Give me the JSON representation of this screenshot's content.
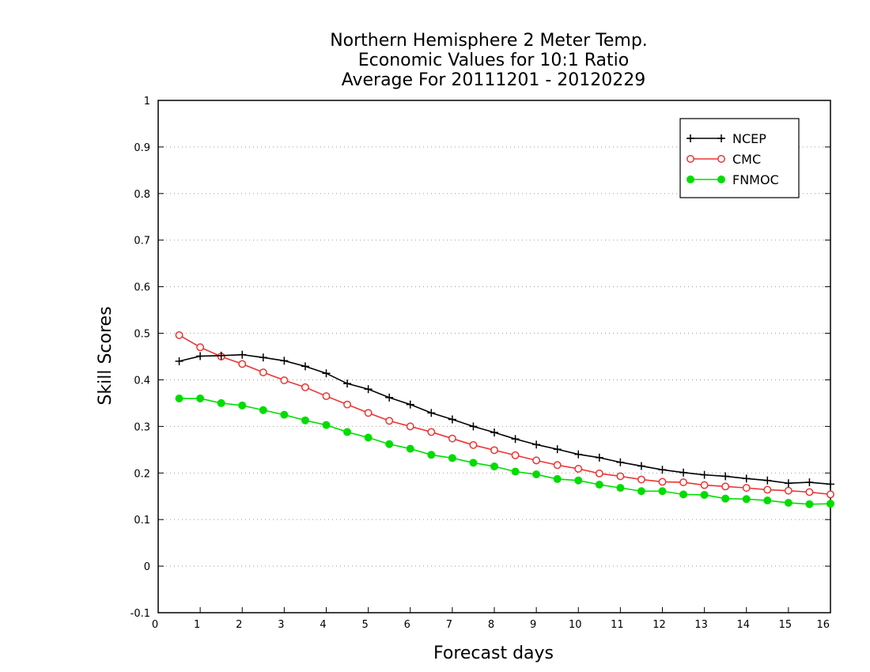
{
  "chart_data": {
    "type": "line",
    "title": [
      "Northern Hemisphere 2 Meter Temp.",
      "Economic Values for 10:1 Ratio",
      "Average For 20111201 - 20120229"
    ],
    "xlabel": "Forecast days",
    "ylabel": "Skill Scores",
    "xlim": [
      0,
      16
    ],
    "ylim": [
      -0.1,
      1
    ],
    "xticks": [
      0,
      1,
      2,
      3,
      4,
      5,
      6,
      7,
      8,
      9,
      10,
      11,
      12,
      13,
      14,
      15,
      16
    ],
    "yticks": [
      -0.1,
      0,
      0.1,
      0.2,
      0.3,
      0.4,
      0.5,
      0.6,
      0.7,
      0.8,
      0.9,
      1
    ],
    "ytick_labels": [
      "-0.1",
      "0",
      "0.1",
      "0.2",
      "0.3",
      "0.4",
      "0.5",
      "0.6",
      "0.7",
      "0.8",
      "0.9",
      "1"
    ],
    "grid": "horizontal dotted",
    "legend_position": "top-right",
    "x": [
      0.5,
      1,
      1.5,
      2,
      2.5,
      3,
      3.5,
      4,
      4.5,
      5,
      5.5,
      6,
      6.5,
      7,
      7.5,
      8,
      8.5,
      9,
      9.5,
      10,
      10.5,
      11,
      11.5,
      12,
      12.5,
      13,
      13.5,
      14,
      14.5,
      15,
      15.5,
      16
    ],
    "series": [
      {
        "name": "NCEP",
        "color": "#000000",
        "marker": "plus",
        "values": [
          0.44,
          0.451,
          0.452,
          0.454,
          0.448,
          0.441,
          0.429,
          0.414,
          0.392,
          0.38,
          0.362,
          0.347,
          0.329,
          0.315,
          0.3,
          0.287,
          0.273,
          0.261,
          0.251,
          0.24,
          0.233,
          0.223,
          0.215,
          0.207,
          0.201,
          0.196,
          0.193,
          0.188,
          0.184,
          0.178,
          0.18,
          0.176
        ]
      },
      {
        "name": "CMC",
        "color": "#ee3333",
        "marker": "open-circle",
        "values": [
          0.496,
          0.47,
          0.45,
          0.434,
          0.416,
          0.399,
          0.384,
          0.365,
          0.347,
          0.329,
          0.312,
          0.3,
          0.288,
          0.274,
          0.26,
          0.249,
          0.238,
          0.227,
          0.217,
          0.209,
          0.199,
          0.193,
          0.186,
          0.181,
          0.18,
          0.174,
          0.171,
          0.168,
          0.164,
          0.162,
          0.159,
          0.154
        ]
      },
      {
        "name": "FNMOC",
        "color": "#00dd00",
        "marker": "filled-circle",
        "values": [
          0.36,
          0.36,
          0.35,
          0.345,
          0.335,
          0.325,
          0.313,
          0.303,
          0.288,
          0.276,
          0.262,
          0.252,
          0.239,
          0.232,
          0.222,
          0.214,
          0.203,
          0.197,
          0.187,
          0.184,
          0.175,
          0.168,
          0.161,
          0.161,
          0.154,
          0.153,
          0.145,
          0.144,
          0.141,
          0.136,
          0.133,
          0.134
        ]
      }
    ]
  }
}
